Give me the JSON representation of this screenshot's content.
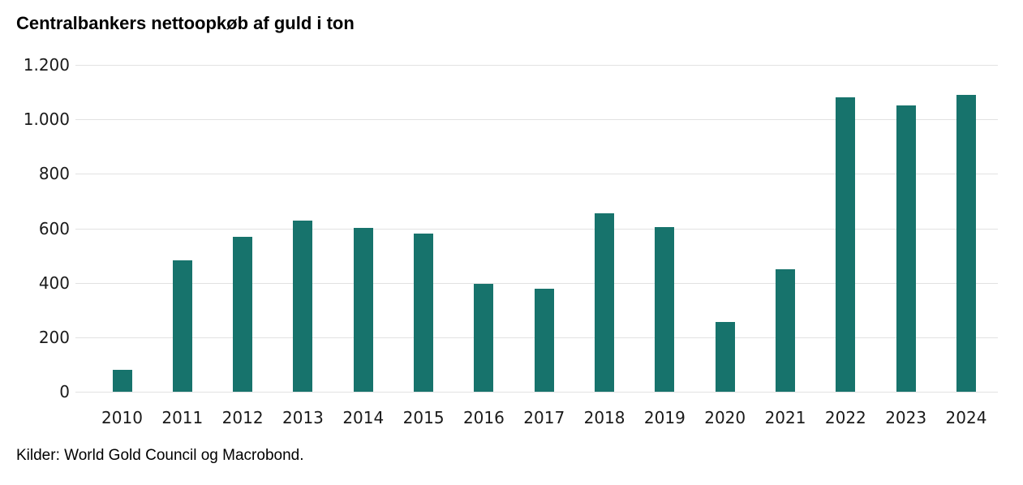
{
  "title": "Centralbankers nettoopkøb af guld i ton",
  "source": "Kilder: World Gold Council og Macrobond.",
  "colors": {
    "bar": "#17736c",
    "gridline": "#e2e2e2",
    "tick_text": "#1a1a1a",
    "title_text": "#000000"
  },
  "chart_data": {
    "type": "bar",
    "title": "Centralbankers nettoopkøb af guld i ton",
    "xlabel": "",
    "ylabel": "",
    "categories": [
      "2010",
      "2011",
      "2012",
      "2013",
      "2014",
      "2015",
      "2016",
      "2017",
      "2018",
      "2019",
      "2020",
      "2021",
      "2022",
      "2023",
      "2024"
    ],
    "values": [
      79,
      481,
      569,
      629,
      601,
      580,
      395,
      379,
      656,
      605,
      255,
      450,
      1082,
      1051,
      1089
    ],
    "ylim": [
      0,
      1200
    ],
    "ytick_step": 200,
    "ytick_labels": [
      "0",
      "200",
      "400",
      "600",
      "800",
      "1.000",
      "1.200"
    ],
    "grid": true,
    "legend": "none",
    "source": "Kilder: World Gold Council og Macrobond."
  }
}
